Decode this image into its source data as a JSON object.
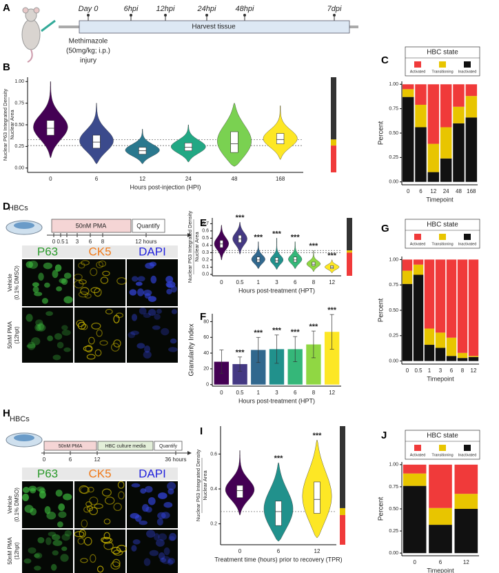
{
  "panel_labels": [
    "A",
    "B",
    "C",
    "D",
    "E",
    "F",
    "G",
    "H",
    "I",
    "J"
  ],
  "timeline_A": {
    "labels": [
      "Day 0",
      "6hpi",
      "12hpi",
      "24hpi",
      "48hpi",
      "7dpi"
    ],
    "bar_label": "Harvest tissue",
    "injury": [
      "Methimazole",
      "(50mg/kg; i.p.)",
      "injury"
    ]
  },
  "protocol_D": {
    "cells": "HBCs",
    "steps": [
      "50nM PMA",
      "Quantify"
    ],
    "ticks": [
      "0",
      "0.5",
      "1",
      "3",
      "6",
      "8",
      "12 hours"
    ],
    "channels": [
      "P63",
      "CK5",
      "DAPI"
    ],
    "rows": [
      [
        "Vehicle",
        "(0.1% DMSO)"
      ],
      [
        "50nM PMA",
        "(12hpt)"
      ]
    ]
  },
  "protocol_H": {
    "cells": "HBCs",
    "steps": [
      "50nM PMA",
      "HBC culture media",
      "Quantify"
    ],
    "ticks": [
      "0",
      "6",
      "12",
      "36 hours"
    ],
    "channels": [
      "P63",
      "CK5",
      "DAPI"
    ],
    "rows": [
      [
        "Vehicle",
        "(0.1% DMSO)"
      ],
      [
        "50nM PMA",
        "(12hpt)"
      ]
    ]
  },
  "chart_data": [
    {
      "type": "violin",
      "ylabel": [
        "Nuclear P63 Integrated Density",
        "Nuclear Area"
      ],
      "xlabel": "Hours post-injection (HPI)",
      "categories": [
        "0",
        "6",
        "12",
        "24",
        "48",
        "168"
      ],
      "colors": [
        "#440154",
        "#3b4a8c",
        "#2a788e",
        "#22a884",
        "#7ad151",
        "#fde725"
      ],
      "median": [
        0.46,
        0.3,
        0.2,
        0.24,
        0.28,
        0.33
      ],
      "q1": [
        0.38,
        0.23,
        0.16,
        0.2,
        0.18,
        0.28
      ],
      "q3": [
        0.55,
        0.38,
        0.24,
        0.29,
        0.42,
        0.4
      ],
      "min": [
        0.12,
        0.05,
        0.05,
        0.07,
        0.02,
        0.1
      ],
      "max": [
        1.0,
        0.75,
        0.45,
        0.5,
        0.75,
        0.72
      ],
      "thresholds": [
        0.33,
        0.26
      ],
      "ylim": [
        -0.05,
        1.05
      ],
      "yticks": [
        {
          "value": 0,
          "label": "0.00"
        },
        0.25,
        {
          "value": 0.5,
          "label": "0.50"
        },
        0.75,
        {
          "value": 1,
          "label": "1.00"
        }
      ]
    },
    {
      "type": "stacked_bar",
      "title": "HBC state",
      "ylabel": "Percent",
      "xlabel": "Timepoint",
      "categories": [
        "0",
        "6",
        "12",
        "24",
        "48",
        "168"
      ],
      "series": [
        {
          "name": "Activated",
          "color": "#f03a3a",
          "values": [
            0.05,
            0.21,
            0.61,
            0.44,
            0.23,
            0.12
          ]
        },
        {
          "name": "Transitioning",
          "color": "#e8c500",
          "values": [
            0.08,
            0.23,
            0.29,
            0.32,
            0.17,
            0.22
          ]
        },
        {
          "name": "Inactivated",
          "color": "#111111",
          "values": [
            0.87,
            0.56,
            0.1,
            0.24,
            0.6,
            0.66
          ]
        }
      ],
      "ylim": [
        -0.03,
        1.03
      ],
      "yticks": [
        {
          "value": 0,
          "label": "0.00"
        },
        0.25,
        {
          "value": 0.5,
          "label": "0.50"
        },
        0.75,
        {
          "value": 1,
          "label": "1.00"
        }
      ]
    },
    {
      "type": "violin",
      "ylabel": [
        "Nuclear P63 Integrated Density",
        "Nuclear Area"
      ],
      "xlabel": "Hours post-treatment (HPT)",
      "categories": [
        "0",
        "0.5",
        "1",
        "3",
        "6",
        "8",
        "12"
      ],
      "colors": [
        "#440154",
        "#443983",
        "#31688e",
        "#21918c",
        "#35b779",
        "#90d743",
        "#fde725"
      ],
      "median": [
        0.42,
        0.49,
        0.2,
        0.19,
        0.2,
        0.14,
        0.1
      ],
      "q1": [
        0.37,
        0.44,
        0.17,
        0.16,
        0.17,
        0.12,
        0.08
      ],
      "q3": [
        0.47,
        0.54,
        0.24,
        0.23,
        0.24,
        0.17,
        0.12
      ],
      "min": [
        0.2,
        0.28,
        0.08,
        0.07,
        0.08,
        0.04,
        0.02
      ],
      "max": [
        0.68,
        0.72,
        0.45,
        0.5,
        0.45,
        0.33,
        0.2
      ],
      "significance": [
        null,
        "***",
        "***",
        "***",
        "***",
        "***",
        "***"
      ],
      "thresholds": [
        0.33,
        0.3
      ],
      "ylim": [
        -0.02,
        0.78
      ],
      "yticks": [
        {
          "value": 0,
          "label": "0.0"
        },
        0.1,
        0.2,
        0.3,
        0.4,
        0.5,
        0.6,
        0.7
      ]
    },
    {
      "type": "bar",
      "ylabel": "Granularity Index",
      "xlabel": "Hours post-treatment (HPT)",
      "categories": [
        "0",
        "0.5",
        "1",
        "3",
        "6",
        "8",
        "12"
      ],
      "values": [
        29,
        26,
        44,
        45,
        45,
        51,
        67
      ],
      "errors": [
        15,
        9,
        16,
        18,
        16,
        17,
        22
      ],
      "colors": [
        "#440154",
        "#443983",
        "#31688e",
        "#21918c",
        "#35b779",
        "#90d743",
        "#fde725"
      ],
      "significance": [
        null,
        "***",
        "***",
        "***",
        "***",
        "***",
        "***"
      ],
      "ylim": [
        -2,
        90
      ],
      "yticks": [
        0,
        20,
        40,
        60,
        80
      ]
    },
    {
      "type": "stacked_bar",
      "title": "HBC state",
      "ylabel": "Percent",
      "xlabel": "Timepoint",
      "categories": [
        "0",
        "0.5",
        "1",
        "3",
        "6",
        "8",
        "12"
      ],
      "series": [
        {
          "name": "Activated",
          "color": "#f03a3a",
          "values": [
            0.11,
            0.05,
            0.68,
            0.72,
            0.77,
            0.92,
            0.95
          ]
        },
        {
          "name": "Transitioning",
          "color": "#e8c500",
          "values": [
            0.13,
            0.1,
            0.16,
            0.15,
            0.18,
            0.05,
            0.01
          ]
        },
        {
          "name": "Inactivated",
          "color": "#111111",
          "values": [
            0.76,
            0.85,
            0.16,
            0.13,
            0.05,
            0.03,
            0.04
          ]
        }
      ],
      "ylim": [
        -0.03,
        1.03
      ],
      "yticks": [
        {
          "value": 0,
          "label": "0.00"
        },
        0.25,
        {
          "value": 0.5,
          "label": "0.50"
        },
        0.75,
        {
          "value": 1,
          "label": "1.00"
        }
      ]
    },
    {
      "type": "violin",
      "ylabel": [
        "Nuclear P63 Integrated Density",
        "Nuclear Area"
      ],
      "xlabel": "Treatment time (hours) prior to recovery (TPR)",
      "categories": [
        "0",
        "6",
        "12"
      ],
      "colors": [
        "#440154",
        "#21918c",
        "#fde725"
      ],
      "median": [
        0.39,
        0.27,
        0.34
      ],
      "q1": [
        0.35,
        0.19,
        0.26
      ],
      "q3": [
        0.42,
        0.33,
        0.44
      ],
      "min": [
        0.25,
        0.1,
        0.12
      ],
      "max": [
        0.62,
        0.55,
        0.68
      ],
      "significance": [
        null,
        "***",
        "***"
      ],
      "thresholds": [
        0.27
      ],
      "ylim": [
        0.08,
        0.76
      ],
      "yticks": [
        0.2,
        0.4,
        0.6
      ]
    },
    {
      "type": "stacked_bar",
      "title": "HBC state",
      "ylabel": "Percent",
      "xlabel": "Timepoint",
      "categories": [
        "0",
        "6",
        "12"
      ],
      "series": [
        {
          "name": "Activated",
          "color": "#f03a3a",
          "values": [
            0.1,
            0.49,
            0.33
          ]
        },
        {
          "name": "Transitioning",
          "color": "#e8c500",
          "values": [
            0.14,
            0.19,
            0.17
          ]
        },
        {
          "name": "Inactivated",
          "color": "#111111",
          "values": [
            0.76,
            0.32,
            0.5
          ]
        }
      ],
      "ylim": [
        -0.03,
        1.03
      ],
      "yticks": [
        {
          "value": 0,
          "label": "0.00"
        },
        0.25,
        {
          "value": 0.5,
          "label": "0.50"
        },
        0.75,
        {
          "value": 1,
          "label": "1.00"
        }
      ]
    }
  ]
}
